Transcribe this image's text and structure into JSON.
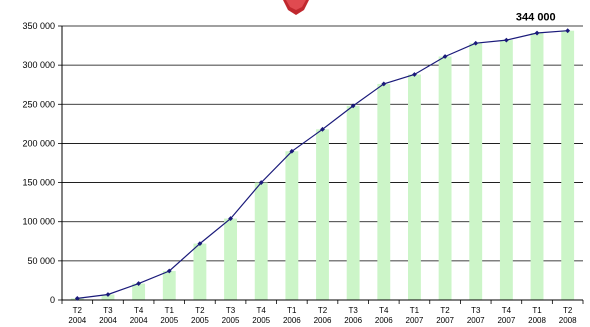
{
  "chart_data": {
    "type": "bar",
    "title": "",
    "xlabel": "",
    "ylabel": "",
    "ylim": [
      0,
      350000
    ],
    "yticks": [
      {
        "value": 0,
        "label": "0"
      },
      {
        "value": 50000,
        "label": "50 000"
      },
      {
        "value": 100000,
        "label": "100 000"
      },
      {
        "value": 150000,
        "label": "150 000"
      },
      {
        "value": 200000,
        "label": "200 000"
      },
      {
        "value": 250000,
        "label": "250 000"
      },
      {
        "value": 300000,
        "label": "300 000"
      },
      {
        "value": 350000,
        "label": "350 000"
      }
    ],
    "grid": true,
    "categories": [
      {
        "quarter": "T2",
        "year": "2004"
      },
      {
        "quarter": "T3",
        "year": "2004"
      },
      {
        "quarter": "T4",
        "year": "2004"
      },
      {
        "quarter": "T1",
        "year": "2005"
      },
      {
        "quarter": "T2",
        "year": "2005"
      },
      {
        "quarter": "T3",
        "year": "2005"
      },
      {
        "quarter": "T4",
        "year": "2005"
      },
      {
        "quarter": "T1",
        "year": "2006"
      },
      {
        "quarter": "T2",
        "year": "2006"
      },
      {
        "quarter": "T3",
        "year": "2006"
      },
      {
        "quarter": "T4",
        "year": "2006"
      },
      {
        "quarter": "T1",
        "year": "2007"
      },
      {
        "quarter": "T2",
        "year": "2007"
      },
      {
        "quarter": "T3",
        "year": "2007"
      },
      {
        "quarter": "T4",
        "year": "2007"
      },
      {
        "quarter": "T1",
        "year": "2008"
      },
      {
        "quarter": "T2",
        "year": "2008"
      }
    ],
    "series": [
      {
        "type": "bar",
        "color": "#ccf5c8",
        "values": [
          2000,
          7000,
          21000,
          37000,
          72000,
          104000,
          150000,
          190000,
          218000,
          248000,
          276000,
          288000,
          311000,
          328000,
          332000,
          341000,
          344000
        ]
      },
      {
        "type": "line",
        "color": "#1a1a7a",
        "values": [
          2000,
          7000,
          21000,
          37000,
          72000,
          104000,
          150000,
          190000,
          218000,
          248000,
          276000,
          288000,
          311000,
          328000,
          332000,
          341000,
          344000
        ]
      }
    ],
    "annotations": [
      {
        "text": "344 000",
        "category_index": 16
      }
    ]
  }
}
